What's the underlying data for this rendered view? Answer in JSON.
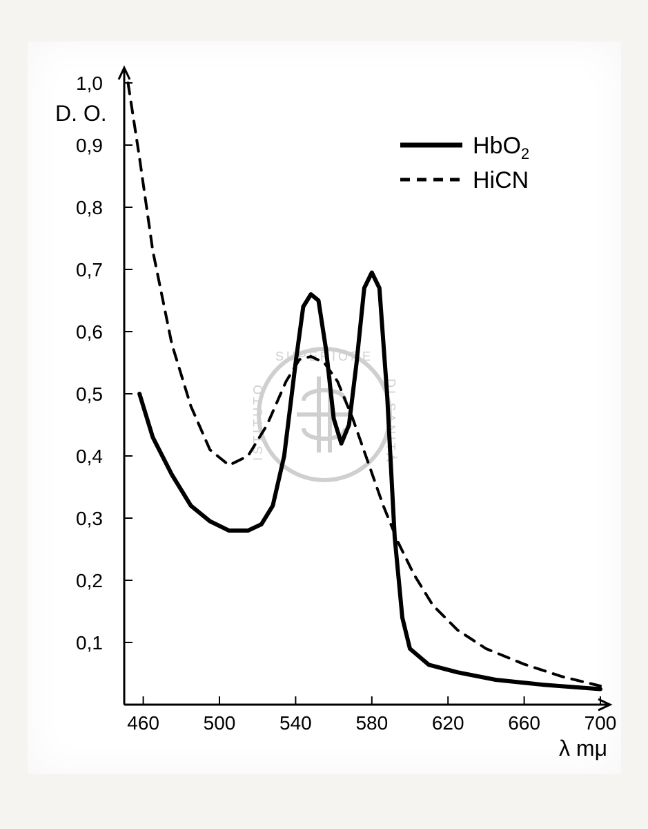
{
  "chart": {
    "type": "line",
    "background_color": "#ffffff",
    "page_background": "#f2f0ec",
    "axis_color": "#000000",
    "axis_width": 3,
    "xlim": [
      450,
      700
    ],
    "ylim": [
      0,
      1.0
    ],
    "ylabel": "D. O.",
    "xlabel": "λ mμ",
    "label_fontsize": 32,
    "tick_fontsize": 28,
    "xticks": [
      460,
      500,
      540,
      580,
      620,
      660,
      700
    ],
    "xtick_labels": [
      "460",
      "500",
      "540",
      "580",
      "620",
      "660",
      "700"
    ],
    "yticks": [
      0.1,
      0.2,
      0.3,
      0.4,
      0.5,
      0.6,
      0.7,
      0.8,
      0.9,
      1.0
    ],
    "ytick_labels": [
      "0,1",
      "0,2",
      "0,3",
      "0,4",
      "0,5",
      "0,6",
      "0,7",
      "0,8",
      "0,9",
      "1,0"
    ],
    "legend": {
      "items": [
        "HbO₂",
        "HiCN"
      ],
      "styles": [
        "solid",
        "dashed"
      ],
      "position": "top-right",
      "fontsize": 34
    },
    "series": [
      {
        "name": "HbO2",
        "label": "HbO₂",
        "style": "solid",
        "color": "#000000",
        "line_width": 6,
        "x": [
          458,
          465,
          475,
          485,
          495,
          505,
          515,
          522,
          528,
          534,
          540,
          544,
          548,
          552,
          556,
          560,
          564,
          568,
          572,
          576,
          580,
          584,
          588,
          592,
          596,
          600,
          610,
          625,
          645,
          670,
          700
        ],
        "y": [
          0.5,
          0.43,
          0.37,
          0.32,
          0.295,
          0.28,
          0.28,
          0.29,
          0.32,
          0.4,
          0.55,
          0.64,
          0.66,
          0.65,
          0.57,
          0.46,
          0.42,
          0.45,
          0.55,
          0.67,
          0.695,
          0.67,
          0.5,
          0.27,
          0.14,
          0.09,
          0.064,
          0.052,
          0.04,
          0.032,
          0.025
        ]
      },
      {
        "name": "HiCN",
        "label": "HiCN",
        "style": "dashed",
        "color": "#000000",
        "line_width": 4,
        "dash": "16 12",
        "x": [
          452,
          458,
          465,
          475,
          485,
          495,
          505,
          515,
          525,
          535,
          542,
          548,
          555,
          562,
          570,
          578,
          586,
          594,
          602,
          612,
          625,
          640,
          660,
          680,
          700
        ],
        "y": [
          1.0,
          0.88,
          0.73,
          0.58,
          0.48,
          0.41,
          0.385,
          0.4,
          0.45,
          0.52,
          0.555,
          0.56,
          0.55,
          0.52,
          0.46,
          0.39,
          0.32,
          0.26,
          0.21,
          0.16,
          0.12,
          0.09,
          0.065,
          0.045,
          0.03
        ]
      }
    ],
    "watermark": {
      "text": "ISTITUTO SUPERIORE DI SANITÀ",
      "color": "#cfcfcf"
    }
  }
}
